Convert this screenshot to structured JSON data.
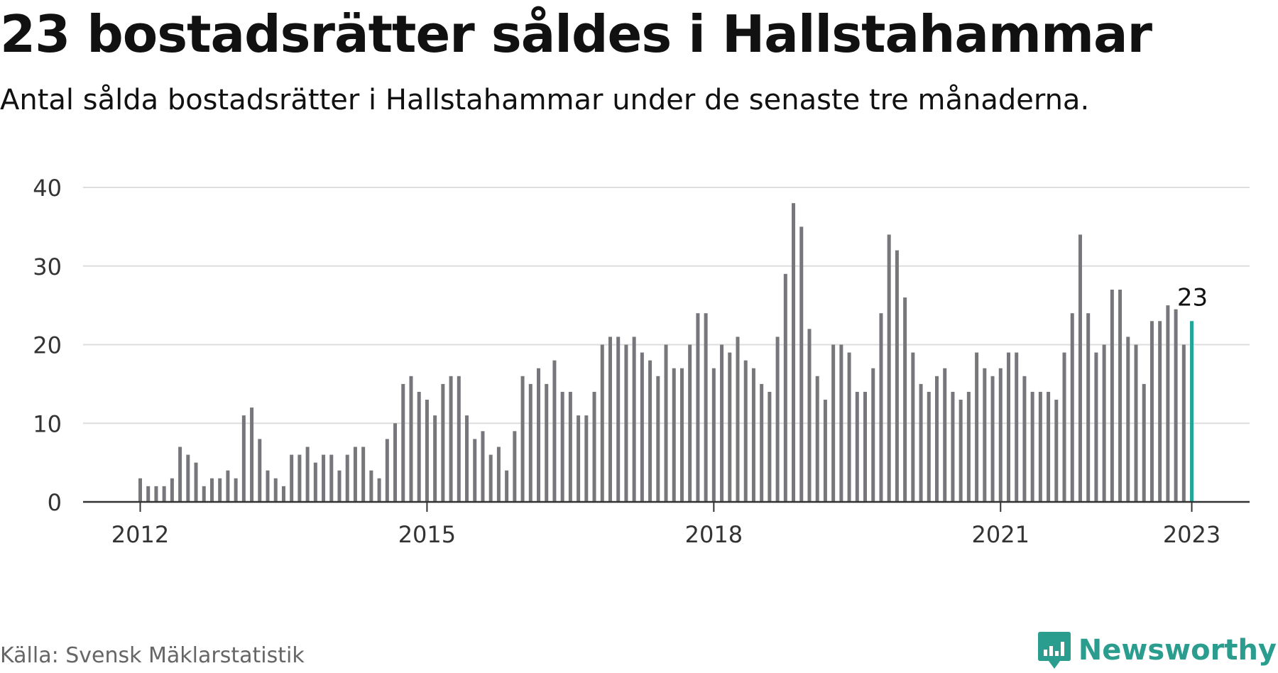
{
  "title": "23 bostadsrätter såldes i Hallstahammar",
  "subtitle": "Antal sålda bostadsrätter i Hallstahammar under de senaste tre månaderna.",
  "source": "Källa: Svensk Mäklarstatistik",
  "brand": {
    "name": "Newsworthy",
    "icon": "newsworthy-logo-icon"
  },
  "colors": {
    "bar": "#77767b",
    "highlight": "#22a69a",
    "grid": "#dddddd",
    "axis": "#333333",
    "brand": "#2a9d8f"
  },
  "chart_data": {
    "type": "bar",
    "xlabel": "",
    "ylabel": "",
    "ylim": [
      0,
      40
    ],
    "yticks": [
      0,
      10,
      20,
      30,
      40
    ],
    "ytick_labels": [
      "0",
      "10",
      "20",
      "30",
      "40"
    ],
    "xticks": [
      {
        "label": "2012",
        "index": 0
      },
      {
        "label": "2015",
        "index": 36
      },
      {
        "label": "2018",
        "index": 72
      },
      {
        "label": "2021",
        "index": 108
      },
      {
        "label": "2023",
        "index": 132
      }
    ],
    "grid": true,
    "legend": "none",
    "start": "2012-01",
    "frequency": "monthly",
    "values": [
      3,
      2,
      2,
      2,
      3,
      7,
      6,
      5,
      2,
      3,
      3,
      4,
      3,
      11,
      12,
      8,
      4,
      3,
      2,
      6,
      6,
      7,
      5,
      6,
      6,
      4,
      6,
      7,
      7,
      4,
      3,
      8,
      10,
      15,
      16,
      14,
      13,
      11,
      15,
      16,
      16,
      11,
      8,
      9,
      6,
      7,
      4,
      9,
      16,
      15,
      17,
      15,
      18,
      14,
      14,
      11,
      11,
      14,
      20,
      21,
      21,
      20,
      21,
      19,
      18,
      16,
      20,
      17,
      17,
      20,
      24,
      24,
      17,
      20,
      19,
      21,
      18,
      17,
      15,
      14,
      21,
      29,
      38,
      35,
      22,
      16,
      13,
      20,
      20,
      19,
      14,
      14,
      17,
      24,
      34,
      32,
      26,
      19,
      15,
      14,
      16,
      17,
      14,
      13,
      14,
      19,
      17,
      16,
      17,
      19,
      19,
      16,
      14,
      14,
      14,
      13,
      19,
      24,
      34,
      24,
      19,
      20,
      27,
      27,
      21,
      20,
      15,
      23,
      23,
      25,
      24.5,
      20,
      23
    ],
    "highlight": {
      "index": 132,
      "label": "23"
    }
  }
}
